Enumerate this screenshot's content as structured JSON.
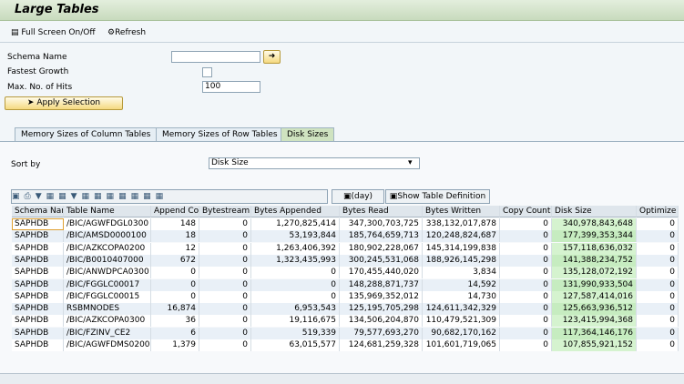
{
  "header": {
    "title": "Large Tables"
  },
  "toolbar": {
    "full_screen": "Full Screen On/Off",
    "refresh": "Refresh"
  },
  "form": {
    "schema_name": {
      "label": "Schema Name",
      "value": ""
    },
    "fastest_growth": {
      "label": "Fastest Growth"
    },
    "max_hits": {
      "label": "Max. No. of Hits",
      "value": "100"
    },
    "apply": "Apply Selection"
  },
  "tabs": [
    "Memory Sizes of Column Tables",
    "Memory Sizes of Row Tables",
    "Disk Sizes"
  ],
  "sort": {
    "label": "Sort by",
    "value": "Disk Size"
  },
  "grid_toolbar": {
    "day": "(day)",
    "show_definition": "Show Table Definition"
  },
  "table": {
    "columns": [
      "Schema Nam",
      "Table Name",
      "Append Cou",
      "Bytestream",
      "Bytes Appended",
      "Bytes Read",
      "Bytes Written",
      "Copy Count",
      "Disk Size",
      "Optimize C"
    ],
    "rows": [
      [
        "SAPHDB",
        "/BIC/AGWFDGL0300",
        "148",
        "0",
        "1,270,825,414",
        "347,300,703,725",
        "338,132,017,878",
        "0",
        "340,978,843,648",
        "0"
      ],
      [
        "SAPHDB",
        "/BIC/AMSD0000100",
        "18",
        "0",
        "53,193,844",
        "185,764,659,713",
        "120,248,824,687",
        "0",
        "177,399,353,344",
        "0"
      ],
      [
        "SAPHDB",
        "/BIC/AZKCOPA0200",
        "12",
        "0",
        "1,263,406,392",
        "180,902,228,067",
        "145,314,199,838",
        "0",
        "157,118,636,032",
        "0"
      ],
      [
        "SAPHDB",
        "/BIC/B0010407000",
        "672",
        "0",
        "1,323,435,993",
        "300,245,531,068",
        "188,926,145,298",
        "0",
        "141,388,234,752",
        "0"
      ],
      [
        "SAPHDB",
        "/BIC/ANWDPCA0300",
        "0",
        "0",
        "0",
        "170,455,440,020",
        "3,834",
        "0",
        "135,128,072,192",
        "0"
      ],
      [
        "SAPHDB",
        "/BIC/FGGLC00017",
        "0",
        "0",
        "0",
        "148,288,871,737",
        "14,592",
        "0",
        "131,990,933,504",
        "0"
      ],
      [
        "SAPHDB",
        "/BIC/FGGLC00015",
        "0",
        "0",
        "0",
        "135,969,352,012",
        "14,730",
        "0",
        "127,587,414,016",
        "0"
      ],
      [
        "SAPHDB",
        "RSBMNODES",
        "16,874",
        "0",
        "6,953,543",
        "125,195,705,298",
        "124,611,342,329",
        "0",
        "125,663,936,512",
        "0"
      ],
      [
        "SAPHDB",
        "/BIC/AZKCOPA0300",
        "36",
        "0",
        "19,116,675",
        "134,506,204,870",
        "110,479,521,309",
        "0",
        "123,415,994,368",
        "0"
      ],
      [
        "SAPHDB",
        "/BIC/FZINV_CE2",
        "6",
        "0",
        "519,339",
        "79,577,693,270",
        "90,682,170,162",
        "0",
        "117,364,146,176",
        "0"
      ],
      [
        "SAPHDB",
        "/BIC/AGWFDMS0200",
        "1,379",
        "0",
        "63,015,577",
        "124,681,259,328",
        "101,601,719,065",
        "0",
        "107,855,921,152",
        "0"
      ]
    ]
  }
}
